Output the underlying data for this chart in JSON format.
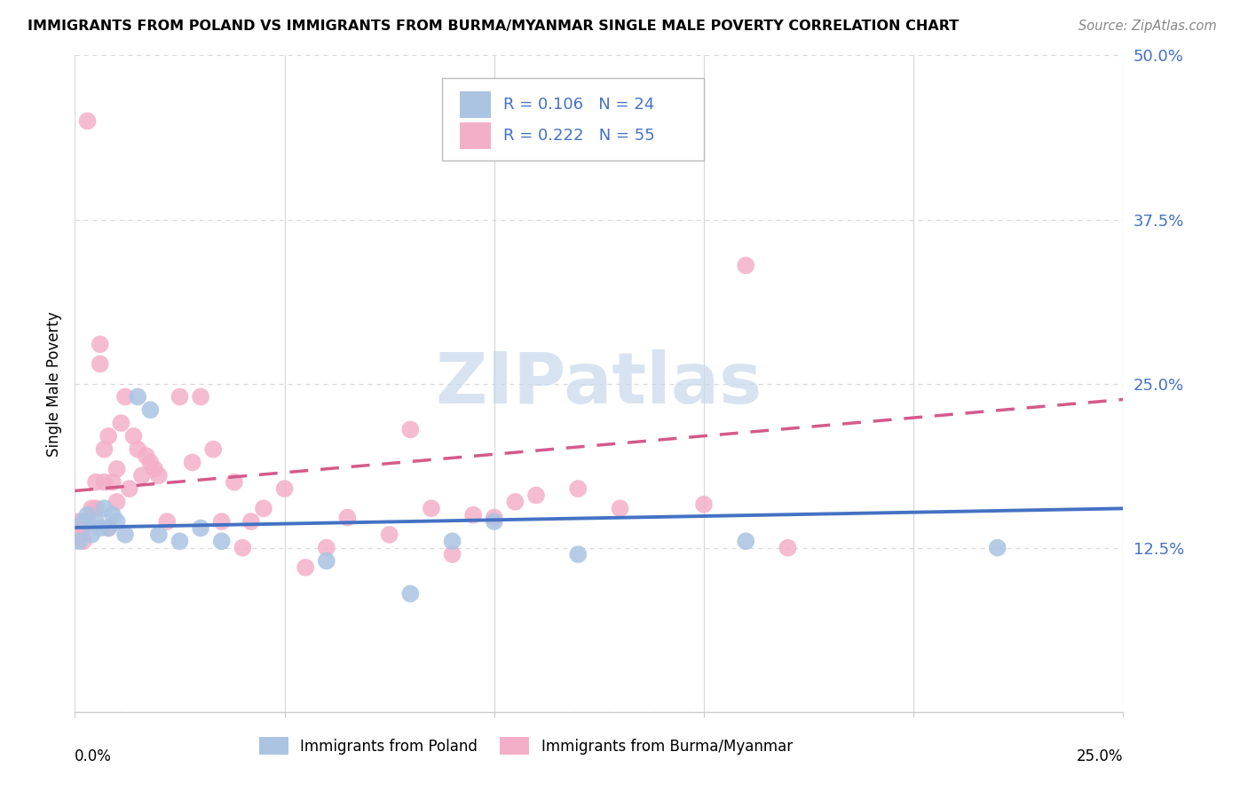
{
  "title": "IMMIGRANTS FROM POLAND VS IMMIGRANTS FROM BURMA/MYANMAR SINGLE MALE POVERTY CORRELATION CHART",
  "source": "Source: ZipAtlas.com",
  "ylabel": "Single Male Poverty",
  "yticks": [
    0.0,
    0.125,
    0.25,
    0.375,
    0.5
  ],
  "ytick_labels": [
    "",
    "12.5%",
    "25.0%",
    "37.5%",
    "50.0%"
  ],
  "xlim": [
    0.0,
    0.25
  ],
  "ylim": [
    0.0,
    0.5
  ],
  "poland_color": "#aac4e2",
  "poland_color_dark": "#4472c4",
  "burma_color": "#f4afc8",
  "burma_color_dark": "#d45a8a",
  "poland_R": 0.106,
  "poland_N": 24,
  "burma_R": 0.222,
  "burma_N": 55,
  "legend_label_poland": "Immigrants from Poland",
  "legend_label_burma": "Immigrants from Burma/Myanmar",
  "poland_x": [
    0.001,
    0.002,
    0.003,
    0.004,
    0.005,
    0.006,
    0.007,
    0.008,
    0.009,
    0.01,
    0.012,
    0.015,
    0.018,
    0.02,
    0.025,
    0.03,
    0.035,
    0.06,
    0.08,
    0.09,
    0.1,
    0.12,
    0.16,
    0.22
  ],
  "poland_y": [
    0.13,
    0.145,
    0.15,
    0.135,
    0.145,
    0.14,
    0.155,
    0.14,
    0.15,
    0.145,
    0.135,
    0.24,
    0.23,
    0.135,
    0.13,
    0.14,
    0.13,
    0.115,
    0.09,
    0.13,
    0.145,
    0.12,
    0.13,
    0.125
  ],
  "burma_x": [
    0.001,
    0.001,
    0.002,
    0.002,
    0.003,
    0.003,
    0.004,
    0.005,
    0.005,
    0.006,
    0.006,
    0.007,
    0.007,
    0.008,
    0.008,
    0.009,
    0.01,
    0.01,
    0.011,
    0.012,
    0.013,
    0.014,
    0.015,
    0.016,
    0.017,
    0.018,
    0.019,
    0.02,
    0.022,
    0.025,
    0.028,
    0.03,
    0.033,
    0.035,
    0.038,
    0.04,
    0.042,
    0.045,
    0.05,
    0.055,
    0.06,
    0.065,
    0.075,
    0.08,
    0.085,
    0.09,
    0.095,
    0.1,
    0.105,
    0.11,
    0.12,
    0.13,
    0.15,
    0.16,
    0.17
  ],
  "burma_y": [
    0.135,
    0.145,
    0.14,
    0.13,
    0.145,
    0.45,
    0.155,
    0.155,
    0.175,
    0.28,
    0.265,
    0.175,
    0.2,
    0.21,
    0.14,
    0.175,
    0.16,
    0.185,
    0.22,
    0.24,
    0.17,
    0.21,
    0.2,
    0.18,
    0.195,
    0.19,
    0.185,
    0.18,
    0.145,
    0.24,
    0.19,
    0.24,
    0.2,
    0.145,
    0.175,
    0.125,
    0.145,
    0.155,
    0.17,
    0.11,
    0.125,
    0.148,
    0.135,
    0.215,
    0.155,
    0.12,
    0.15,
    0.148,
    0.16,
    0.165,
    0.17,
    0.155,
    0.158,
    0.34,
    0.125
  ],
  "watermark": "ZIPatlas",
  "watermark_color": "#c8d8ec",
  "grid_color": "#d8d8d8",
  "spine_color": "#cccccc"
}
